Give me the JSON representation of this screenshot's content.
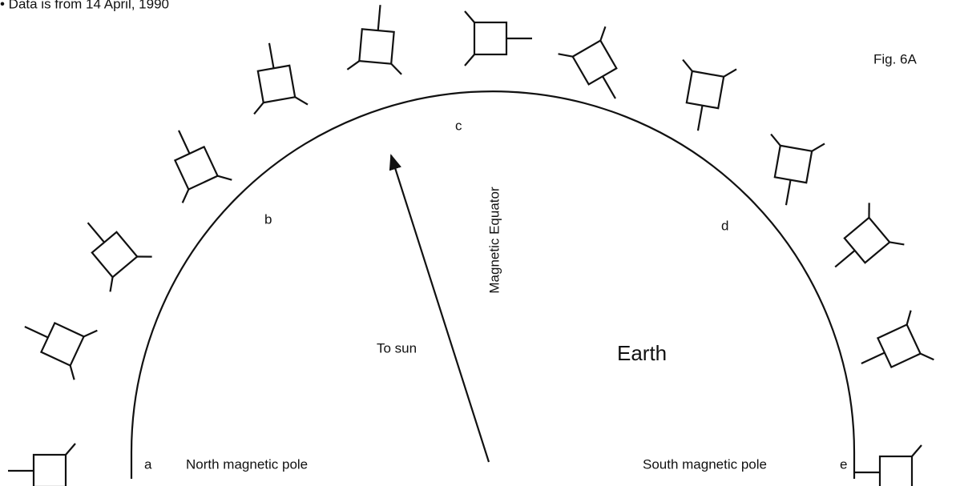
{
  "header": {
    "note": "• Data is from 14 April, 1990",
    "figure": "Fig. 6A"
  },
  "labels": {
    "a": "a",
    "b": "b",
    "c": "c",
    "d": "d",
    "e": "e",
    "north": "North magnetic pole",
    "south": "South magnetic pole",
    "equator": "Magnetic Equator",
    "sun": "To sun",
    "earth": "Earth"
  }
}
